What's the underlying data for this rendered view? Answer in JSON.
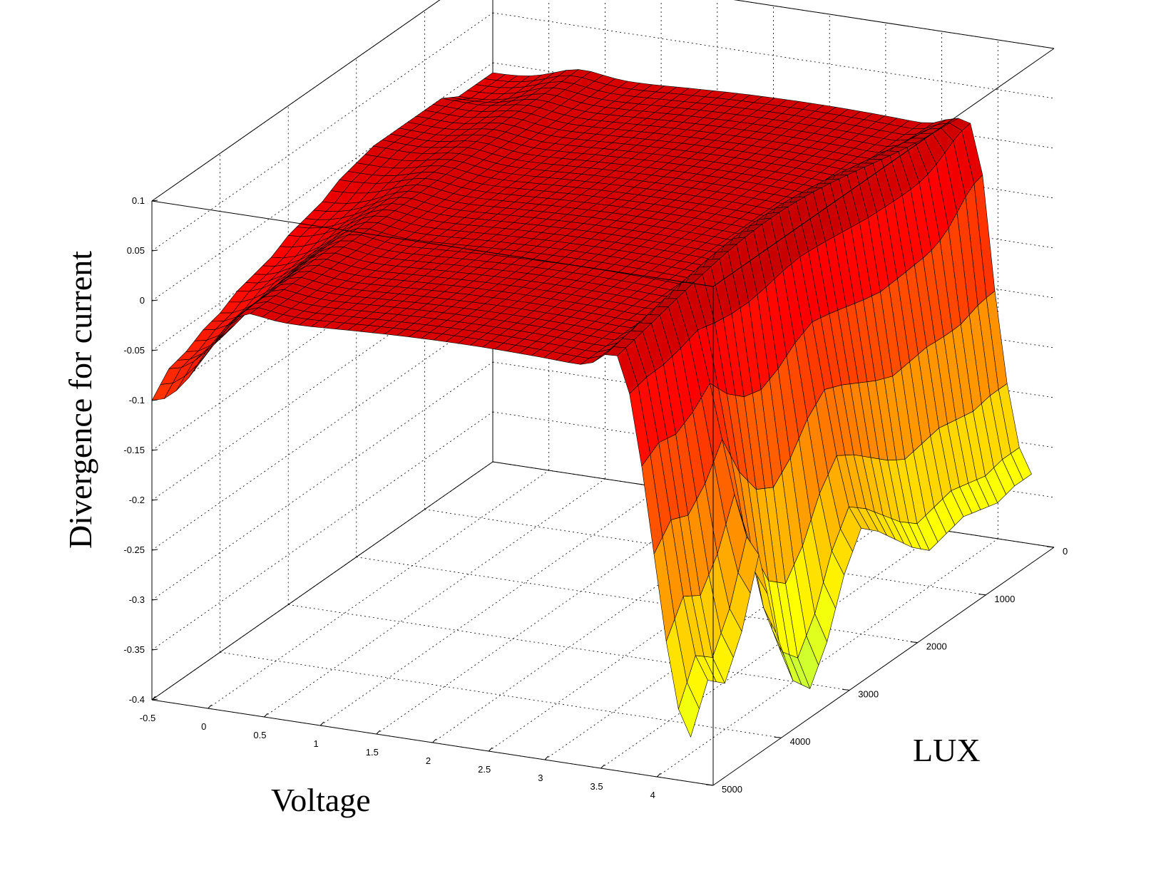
{
  "chart_data": {
    "type": "surface3d",
    "xlabel": "Voltage",
    "ylabel": "LUX",
    "zlabel": "Divergence for current",
    "x_ticks": [
      "-0.5",
      "0",
      "0.5",
      "1",
      "1.5",
      "2",
      "2.5",
      "3",
      "3.5",
      "4"
    ],
    "y_ticks": [
      "0",
      "1000",
      "2000",
      "3000",
      "4000",
      "5000"
    ],
    "z_ticks": [
      "0.1",
      "0.05",
      "0",
      "-0.05",
      "-0.1",
      "-0.15",
      "-0.2",
      "-0.25",
      "-0.3",
      "-0.35",
      "-0.4"
    ],
    "xlim": [
      -0.5,
      4.5
    ],
    "ylim": [
      0,
      5000
    ],
    "zlim": [
      -0.4,
      0.1
    ],
    "grid": true,
    "colormap": "jet",
    "lux": [
      0,
      250,
      500,
      750,
      1000,
      1250,
      1500,
      1750,
      2000,
      2250,
      2500,
      2750,
      3000,
      3250,
      3500,
      3750,
      4000,
      4250,
      4500,
      4750,
      5000
    ],
    "edge_voltage": [
      -0.5,
      4.3
    ],
    "profile_low_voltage_edge": [
      -0.01,
      -0.01,
      -0.01,
      0.0,
      0.0,
      0.0,
      0.0,
      0.0,
      -0.005,
      -0.01,
      -0.02,
      -0.025,
      -0.03,
      -0.04,
      -0.045,
      -0.05,
      -0.06,
      -0.065,
      -0.075,
      -0.08,
      -0.1
    ],
    "profile_high_voltage_edge": [
      -0.33,
      -0.33,
      -0.335,
      -0.33,
      -0.325,
      -0.33,
      -0.335,
      -0.32,
      -0.3,
      -0.28,
      -0.265,
      -0.3,
      -0.355,
      -0.39,
      -0.37,
      -0.31,
      -0.22,
      -0.285,
      -0.325,
      -0.31,
      -0.355
    ],
    "plateau_value": 0.0
  }
}
